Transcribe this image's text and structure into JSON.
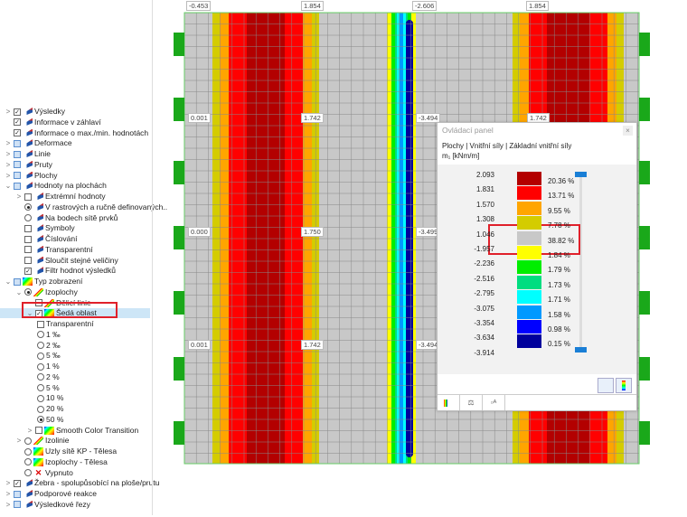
{
  "tree": [
    {
      "label": "Výsledky",
      "exp": ">",
      "ctrl": "check",
      "icon": "results-icon",
      "lvl": 0
    },
    {
      "label": "Informace v záhlaví",
      "exp": "",
      "ctrl": "check",
      "icon": "results-icon",
      "lvl": 0
    },
    {
      "label": "Informace o max./min. hodnotách",
      "exp": "",
      "ctrl": "check",
      "icon": "results-icon",
      "lvl": 0
    },
    {
      "label": "Deformace",
      "exp": ">",
      "ctrl": "part",
      "icon": "results-icon",
      "lvl": 0
    },
    {
      "label": "Linie",
      "exp": ">",
      "ctrl": "part",
      "icon": "results-icon",
      "lvl": 0
    },
    {
      "label": "Pruty",
      "exp": ">",
      "ctrl": "part",
      "icon": "results-icon",
      "lvl": 0
    },
    {
      "label": "Plochy",
      "exp": ">",
      "ctrl": "part",
      "icon": "results-icon",
      "lvl": 0
    },
    {
      "label": "Hodnoty na plochách",
      "exp": "v",
      "ctrl": "part",
      "icon": "results-icon",
      "lvl": 0
    },
    {
      "label": "Extrémní hodnoty",
      "exp": ">",
      "ctrl": "uncheck",
      "icon": "results-icon",
      "lvl": 1
    },
    {
      "label": "V rastrových a ručně definovaných..",
      "exp": "",
      "ctrl": "radio-on",
      "icon": "results-icon",
      "lvl": 1
    },
    {
      "label": "Na bodech sítě prvků",
      "exp": "",
      "ctrl": "radio",
      "icon": "results-icon",
      "lvl": 1
    },
    {
      "label": "Symboly",
      "exp": "",
      "ctrl": "uncheck",
      "icon": "results-icon",
      "lvl": 1
    },
    {
      "label": "Číslování",
      "exp": "",
      "ctrl": "uncheck",
      "icon": "results-icon",
      "lvl": 1
    },
    {
      "label": "Transparentní",
      "exp": "",
      "ctrl": "uncheck",
      "icon": "results-icon",
      "lvl": 1
    },
    {
      "label": "Sloučit stejné veličiny",
      "exp": "",
      "ctrl": "uncheck",
      "icon": "results-icon",
      "lvl": 1
    },
    {
      "label": "Filtr hodnot výsledků",
      "exp": "",
      "ctrl": "check",
      "icon": "results-icon",
      "lvl": 1
    },
    {
      "label": "Typ zobrazení",
      "exp": "v",
      "ctrl": "part",
      "icon": "rainbow-icon",
      "lvl": 0
    },
    {
      "label": "Izoplochy",
      "exp": "v",
      "ctrl": "radio-on",
      "icon": "isoline-icon",
      "lvl": 1
    },
    {
      "label": "Dělicí linie",
      "exp": "",
      "ctrl": "uncheck",
      "icon": "isoline-icon",
      "lvl": 2
    },
    {
      "label": "Šedá oblast",
      "exp": "v",
      "ctrl": "check",
      "icon": "rainbow-icon",
      "lvl": 2,
      "selected": true
    },
    {
      "label": "Transparentní",
      "exp": "",
      "ctrl": "uncheck",
      "icon": "",
      "lvl": 3
    },
    {
      "label": "1 ‰",
      "exp": "",
      "ctrl": "radio",
      "icon": "",
      "lvl": 3
    },
    {
      "label": "2 ‰",
      "exp": "",
      "ctrl": "radio",
      "icon": "",
      "lvl": 3
    },
    {
      "label": "5 ‰",
      "exp": "",
      "ctrl": "radio",
      "icon": "",
      "lvl": 3
    },
    {
      "label": "1 %",
      "exp": "",
      "ctrl": "radio",
      "icon": "",
      "lvl": 3
    },
    {
      "label": "2 %",
      "exp": "",
      "ctrl": "radio",
      "icon": "",
      "lvl": 3
    },
    {
      "label": "5 %",
      "exp": "",
      "ctrl": "radio",
      "icon": "",
      "lvl": 3
    },
    {
      "label": "10 %",
      "exp": "",
      "ctrl": "radio",
      "icon": "",
      "lvl": 3
    },
    {
      "label": "20 %",
      "exp": "",
      "ctrl": "radio",
      "icon": "",
      "lvl": 3
    },
    {
      "label": "50 %",
      "exp": "",
      "ctrl": "radio-on",
      "icon": "",
      "lvl": 3
    },
    {
      "label": "Smooth Color Transition",
      "exp": ">",
      "ctrl": "uncheck",
      "icon": "rainbow-icon",
      "lvl": 2
    },
    {
      "label": "Izolinie",
      "exp": ">",
      "ctrl": "radio",
      "icon": "isoline-icon",
      "lvl": 1
    },
    {
      "label": "Uzly sítě KP - Tělesa",
      "exp": "",
      "ctrl": "radio",
      "icon": "rainbow-icon",
      "lvl": 1
    },
    {
      "label": "Izoplochy - Tělesa",
      "exp": "",
      "ctrl": "radio",
      "icon": "rainbow-icon",
      "lvl": 1
    },
    {
      "label": "Vypnuto",
      "exp": "",
      "ctrl": "radio",
      "icon": "off-icon",
      "lvl": 1
    },
    {
      "label": "Žebra - spolupůsobící na ploše/prutu",
      "exp": ">",
      "ctrl": "check",
      "icon": "results-icon",
      "lvl": 0
    },
    {
      "label": "Podporové reakce",
      "exp": ">",
      "ctrl": "part",
      "icon": "results-icon",
      "lvl": 0
    },
    {
      "label": "Výsledkové řezy",
      "exp": ">",
      "ctrl": "part",
      "icon": "results-icon",
      "lvl": 0
    }
  ],
  "model": {
    "top_labels": [
      "-0.453",
      "1.854",
      "-2.606",
      "1.854"
    ],
    "row1_labels": [
      "0.001",
      "1.742",
      "-3.494",
      "1.742"
    ],
    "row2_labels": [
      "0.000",
      "1.750",
      "-3.499"
    ],
    "row3_labels": [
      "0.001",
      "1.742",
      "-3.494"
    ]
  },
  "panel": {
    "title": "Ovládací panel",
    "close": "×",
    "path": "Plochy | Vnitřní síly | Základní vnitřní síly",
    "quantity": "m₁ [kNm/m]",
    "values": [
      "2.093",
      "1.831",
      "1.570",
      "1.308",
      "1.046",
      "-1.957",
      "-2.236",
      "-2.516",
      "-2.795",
      "-3.075",
      "-3.354",
      "-3.634",
      "-3.914"
    ],
    "colors": [
      "#b30000",
      "#ff0000",
      "#ffa500",
      "#d4cc00",
      "#c8c8c8",
      "#ffff00",
      "#00ee00",
      "#00dd80",
      "#00ffff",
      "#0099ff",
      "#0000ff",
      "#00009c"
    ],
    "percents": [
      "20.36 %",
      "13.71 %",
      "9.55 %",
      "7.78 %",
      "38.82 %",
      "1.84 %",
      "1.79 %",
      "1.73 %",
      "1.71 %",
      "1.58 %",
      "0.98 %",
      "0.15 %"
    ]
  }
}
